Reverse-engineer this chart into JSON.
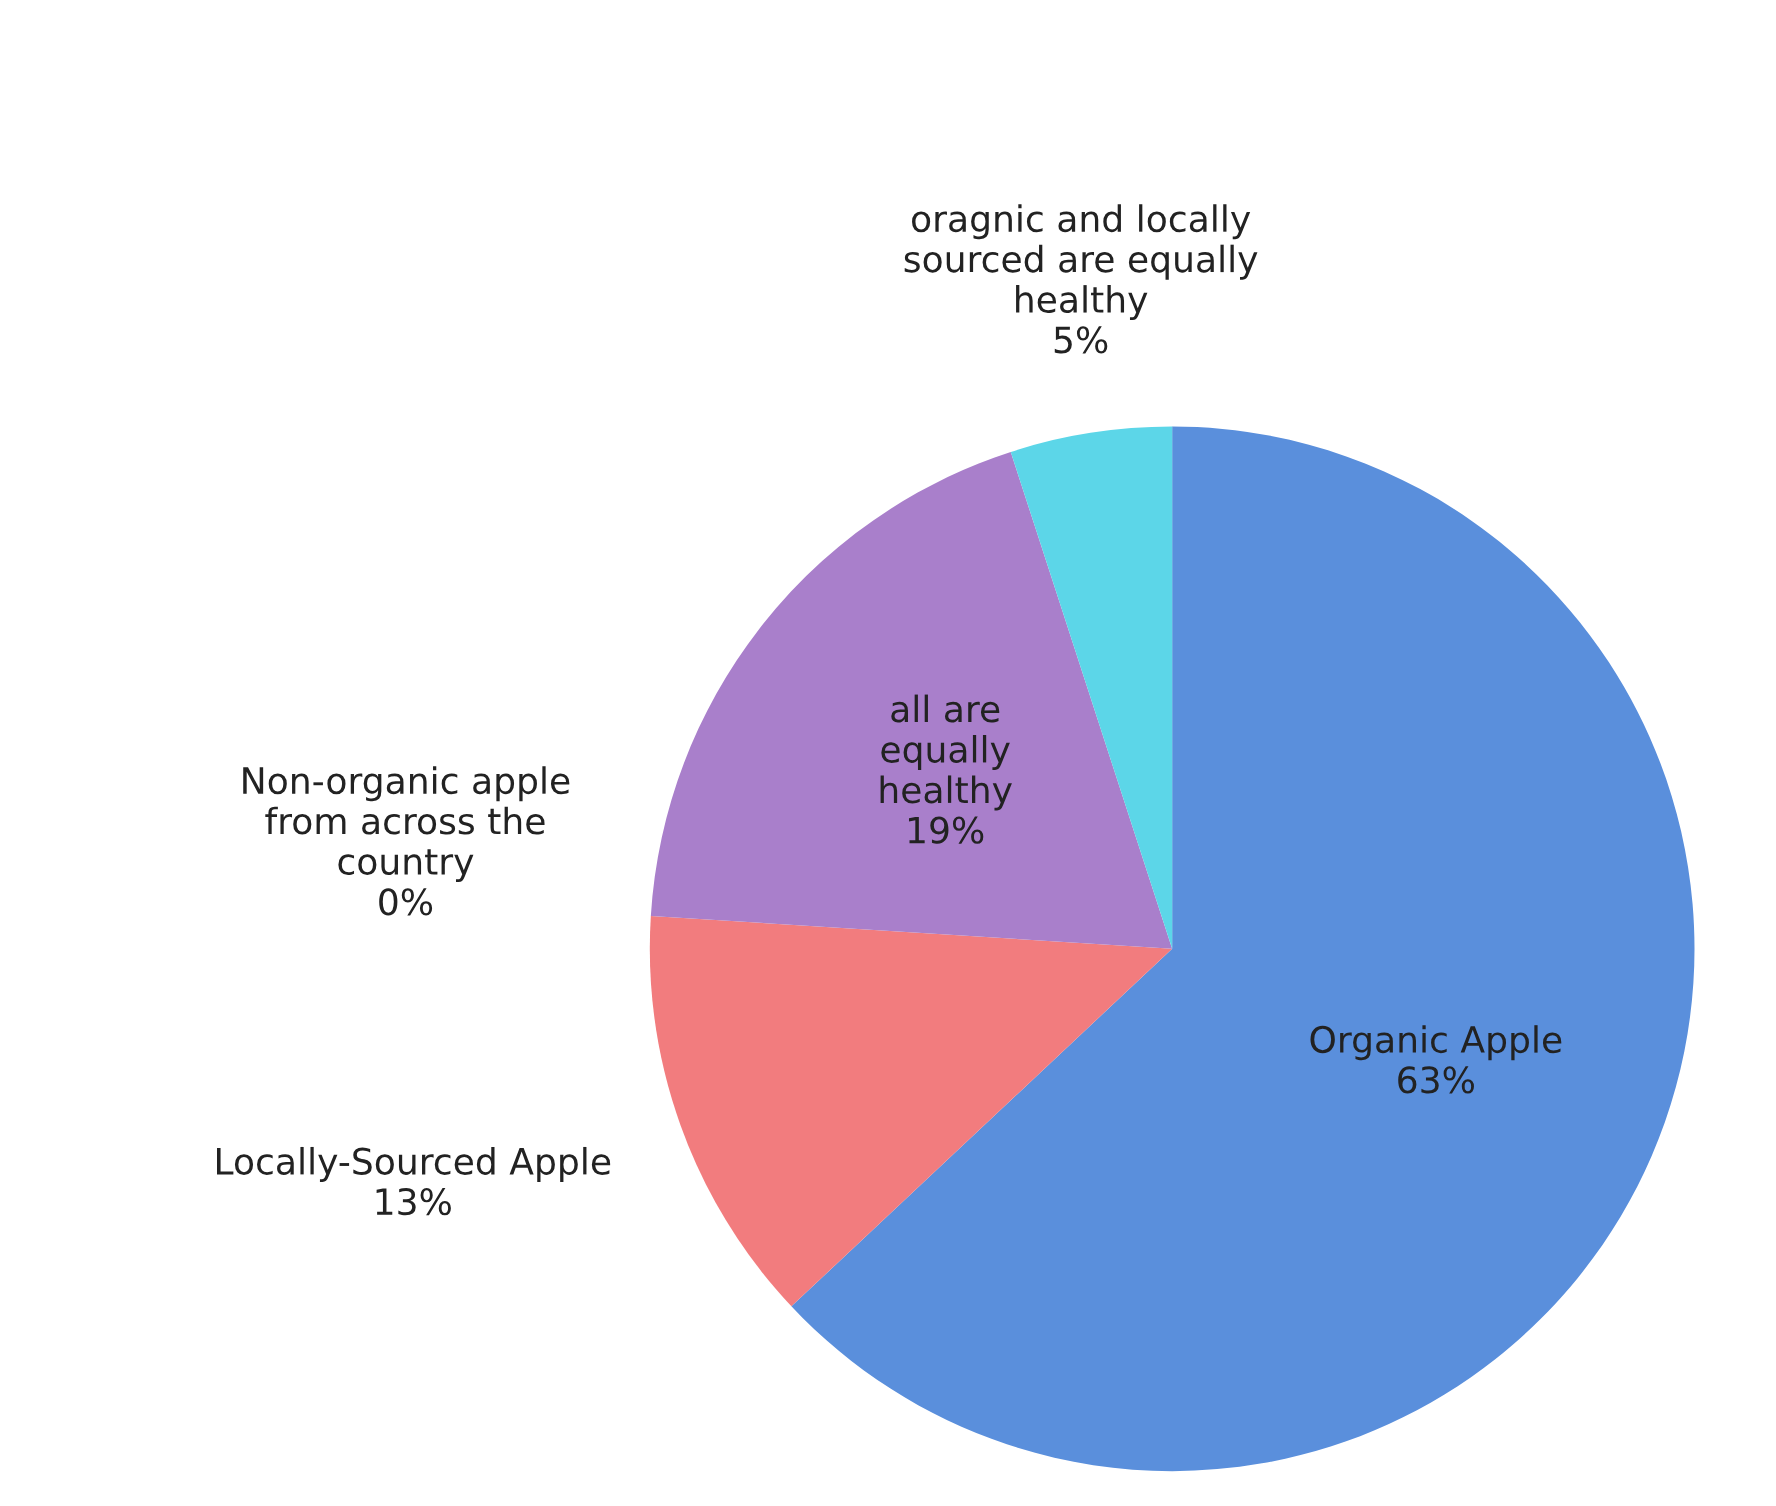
{
  "chart_data": {
    "type": "pie",
    "categories": [
      "Organic Apple",
      "Locally-Sourced Apple",
      "Non-organic apple\nfrom across the\ncountry",
      "all are\nequally\nhealthy",
      "oragnic and locally\nsourced are equally\nhealthy"
    ],
    "values": [
      63,
      13,
      0,
      19,
      5
    ],
    "colors": [
      "#5a8fdc",
      "#f27c7e",
      "#f4a6a0",
      "#a97fcb",
      "#5cd6e8"
    ],
    "value_labels": [
      "63%",
      "13%",
      "0%",
      "19%",
      "5%"
    ]
  }
}
